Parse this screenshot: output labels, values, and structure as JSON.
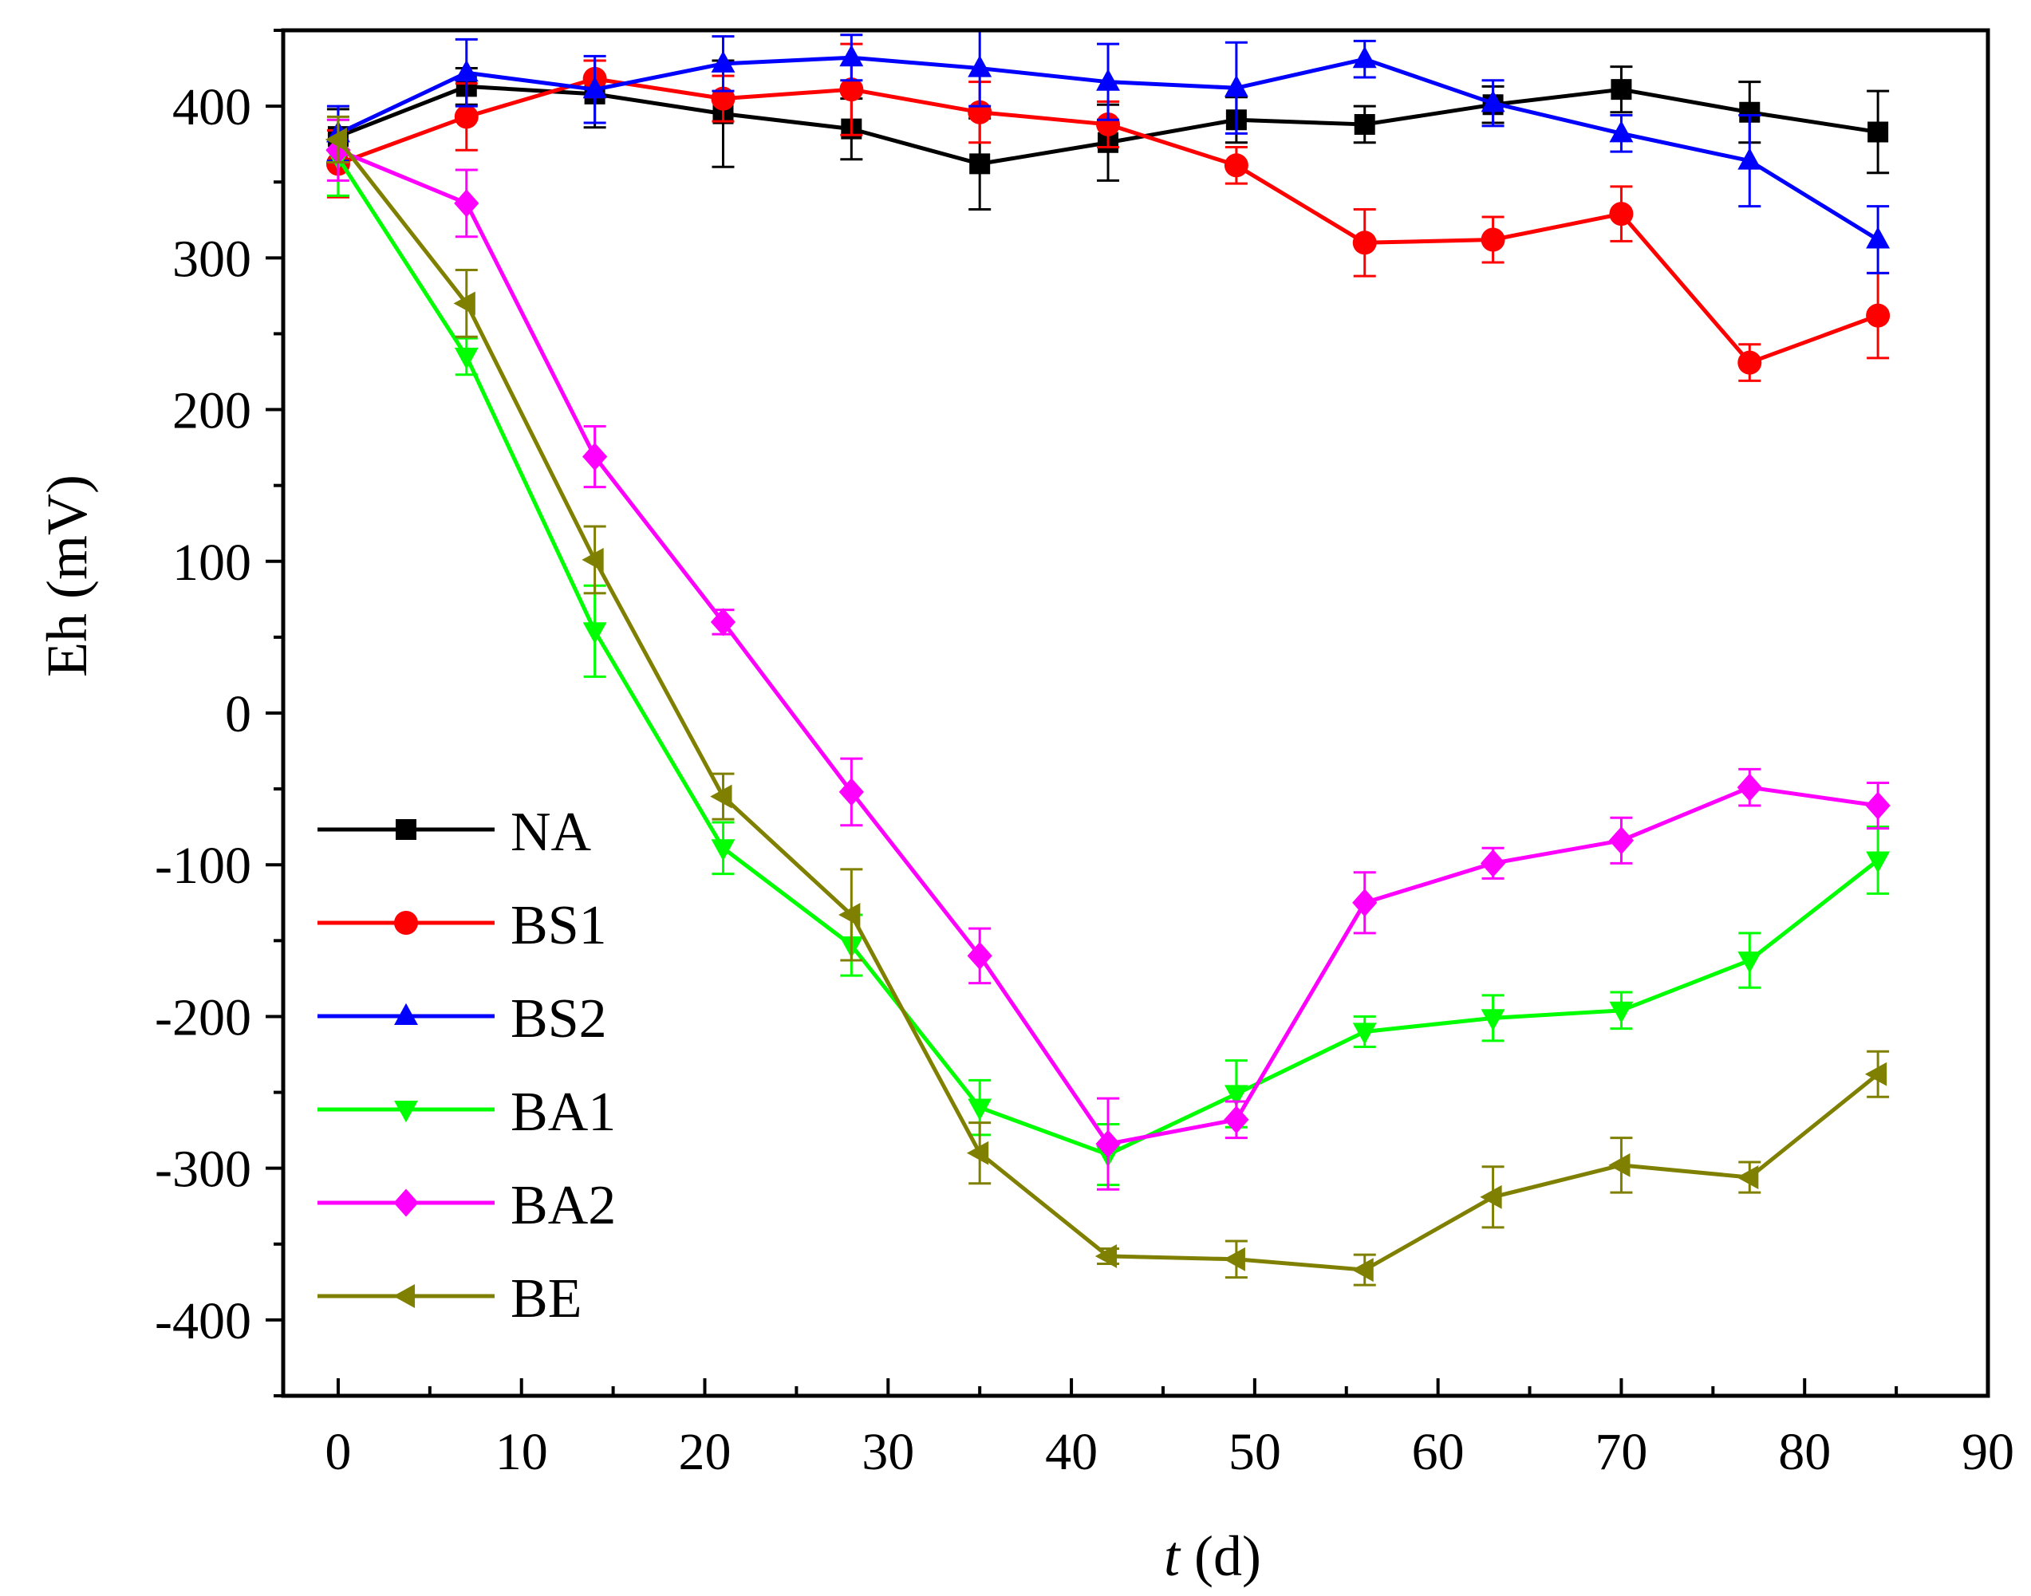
{
  "chart_data": {
    "type": "line",
    "title": "",
    "xlabel": "t (d)",
    "xlabel_var": "t",
    "xlabel_unit": " (d)",
    "ylabel": "Eh (mV)",
    "xlim": [
      -3,
      90
    ],
    "ylim": [
      -450,
      450
    ],
    "x_ticks": [
      0,
      10,
      20,
      30,
      40,
      50,
      60,
      70,
      80,
      90
    ],
    "y_ticks": [
      -400,
      -300,
      -200,
      -100,
      0,
      100,
      200,
      300,
      400
    ],
    "legend_position": "lower-left",
    "x": [
      0,
      7,
      14,
      21,
      28,
      35,
      42,
      49,
      56,
      63,
      70,
      77,
      84
    ],
    "series": [
      {
        "name": "NA",
        "color": "#000000",
        "marker": "square",
        "values": [
          380,
          413,
          408,
          395,
          385,
          362,
          376,
          391,
          388,
          401,
          411,
          396,
          383
        ],
        "errors": [
          18,
          12,
          22,
          35,
          20,
          30,
          25,
          15,
          12,
          12,
          15,
          20,
          27
        ]
      },
      {
        "name": "BS1",
        "color": "#ff0000",
        "marker": "circle",
        "values": [
          362,
          393,
          418,
          405,
          411,
          396,
          388,
          361,
          310,
          312,
          329,
          231,
          262
        ],
        "errors": [
          22,
          22,
          12,
          15,
          30,
          20,
          15,
          12,
          22,
          15,
          18,
          12,
          28
        ]
      },
      {
        "name": "BS2",
        "color": "#0000ff",
        "marker": "triangle-up",
        "values": [
          382,
          422,
          411,
          428,
          432,
          425,
          416,
          412,
          431,
          402,
          382,
          364,
          312
        ],
        "errors": [
          18,
          22,
          22,
          18,
          15,
          25,
          25,
          30,
          12,
          15,
          12,
          30,
          22
        ]
      },
      {
        "name": "BA1",
        "color": "#00ff00",
        "marker": "triangle-down",
        "values": [
          366,
          235,
          54,
          -89,
          -153,
          -260,
          -291,
          -251,
          -210,
          -201,
          -196,
          -163,
          -97
        ],
        "errors": [
          25,
          12,
          30,
          17,
          20,
          18,
          20,
          22,
          10,
          15,
          12,
          18,
          22
        ]
      },
      {
        "name": "BA2",
        "color": "#ff00ff",
        "marker": "diamond",
        "values": [
          371,
          336,
          169,
          60,
          -52,
          -160,
          -284,
          -268,
          -125,
          -99,
          -84,
          -49,
          -61
        ],
        "errors": [
          20,
          22,
          20,
          8,
          22,
          18,
          30,
          12,
          20,
          10,
          15,
          12,
          15
        ]
      },
      {
        "name": "BE",
        "color": "#808000",
        "marker": "triangle-left",
        "values": [
          378,
          270,
          101,
          -55,
          -133,
          -290,
          -358,
          -360,
          -367,
          -319,
          -298,
          -306,
          -238
        ],
        "errors": [
          15,
          22,
          22,
          15,
          30,
          20,
          5,
          12,
          10,
          20,
          18,
          10,
          15
        ]
      }
    ]
  }
}
